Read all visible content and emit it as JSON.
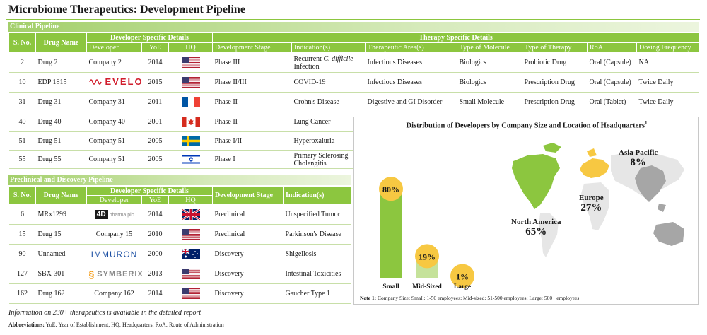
{
  "title": "Microbiome Therapeutics: Development Pipeline",
  "clinical": {
    "band": "Clinical Pipeline",
    "group_dev": "Developer Specific Details",
    "group_ther": "Therapy Specific Details",
    "headers": {
      "sno": "S. No.",
      "drug": "Drug Name",
      "developer": "Developer",
      "yoe": "YoE",
      "hq": "HQ",
      "stage": "Development Stage",
      "indication": "Indication(s)",
      "area": "Therapeutic Area(s)",
      "molecule": "Type of Molecule",
      "therapy": "Type of Therapy",
      "roa": "RoA",
      "dosing": "Dosing Frequency"
    },
    "rows": [
      {
        "sno": "2",
        "drug": "Drug 2",
        "developer": "Company 2",
        "logo": "",
        "yoe": "2014",
        "flag": "us-flag",
        "stage": "Phase III",
        "ind_a": "Recurrent ",
        "ind_b": "C. difficile",
        "ind_c": " Infection",
        "area": "Infectious Diseases",
        "molecule": "Biologics",
        "therapy": "Probiotic Drug",
        "roa": "Oral (Capsule)",
        "dosing": "NA"
      },
      {
        "sno": "10",
        "drug": "EDP 1815",
        "developer": "",
        "logo": "EVELO",
        "yoe": "2015",
        "flag": "us-flag",
        "stage": "Phase II/III",
        "ind_a": "COVID-19",
        "ind_b": "",
        "ind_c": "",
        "area": "Infectious Diseases",
        "molecule": "Biologics",
        "therapy": "Prescription Drug",
        "roa": "Oral (Capsule)",
        "dosing": "Twice Daily"
      },
      {
        "sno": "31",
        "drug": "Drug 31",
        "developer": "Company 31",
        "logo": "",
        "yoe": "2011",
        "flag": "france-flag",
        "stage": "Phase II",
        "ind_a": "Crohn's Disease",
        "ind_b": "",
        "ind_c": "",
        "area": "Digestive and GI Disorder",
        "molecule": "Small Molecule",
        "therapy": "Prescription Drug",
        "roa": "Oral (Tablet)",
        "dosing": "Twice Daily"
      },
      {
        "sno": "40",
        "drug": "Drug 40",
        "developer": "Company 40",
        "logo": "",
        "yoe": "2001",
        "flag": "canada-flag",
        "stage": "Phase II",
        "ind_a": "Lung Cancer",
        "ind_b": "",
        "ind_c": ""
      },
      {
        "sno": "51",
        "drug": "Drug 51",
        "developer": "Company 51",
        "logo": "",
        "yoe": "2005",
        "flag": "sweden-flag",
        "stage": "Phase I/II",
        "ind_a": "Hyperoxaluria",
        "ind_b": "",
        "ind_c": ""
      },
      {
        "sno": "55",
        "drug": "Drug 55",
        "developer": "Company 51",
        "logo": "",
        "yoe": "2005",
        "flag": "israel-flag",
        "stage": "Phase I",
        "ind_a": "Primary Sclerosing Cholangitis",
        "ind_b": "",
        "ind_c": ""
      }
    ]
  },
  "preclinical": {
    "band": "Preclinical and Discovery Pipeline",
    "group_dev": "Developer Specific Details",
    "headers": {
      "sno": "S. No.",
      "drug": "Drug Name",
      "developer": "Developer",
      "yoe": "YoE",
      "hq": "HQ",
      "stage": "Development Stage",
      "indication": "Indication(s)"
    },
    "rows": [
      {
        "sno": "6",
        "drug": "MRx1299",
        "developer": "",
        "logo": "4D",
        "logo_sub": "pharma plc",
        "yoe": "2014",
        "flag": "uk-flag",
        "stage": "Preclinical",
        "indication": "Unspecified Tumor"
      },
      {
        "sno": "15",
        "drug": "Drug 15",
        "developer": "Company 15",
        "logo": "",
        "yoe": "2010",
        "flag": "us-flag",
        "stage": "Preclinical",
        "indication": "Parkinson's Disease"
      },
      {
        "sno": "90",
        "drug": "Unnamed",
        "developer": "",
        "logo": "IMMURON",
        "yoe": "2000",
        "flag": "australia-flag",
        "stage": "Discovery",
        "indication": "Shigellosis"
      },
      {
        "sno": "127",
        "drug": "SBX-301",
        "developer": "",
        "logo": "SYMBERIX",
        "yoe": "2013",
        "flag": "us-flag",
        "stage": "Discovery",
        "indication": "Intestinal Toxicities"
      },
      {
        "sno": "162",
        "drug": "Drug 162",
        "developer": "Company 162",
        "logo": "",
        "yoe": "2014",
        "flag": "us-flag",
        "stage": "Discovery",
        "indication": "Gaucher Type 1"
      }
    ]
  },
  "chart_data": {
    "type": "bar",
    "title": "Distribution of Developers by Company Size and Location of Headquarters",
    "title_sup": "1",
    "categories": [
      "Small",
      "Mid-Sized",
      "Large"
    ],
    "values": [
      80,
      19,
      1
    ],
    "value_labels": [
      "80%",
      "19%",
      "1%"
    ],
    "unit": "%",
    "ylim": [
      0,
      100
    ],
    "colors": [
      "#8cc63f",
      "#c5e29a",
      "#d9d9d9"
    ],
    "label_color": "#f7c842",
    "regions": [
      {
        "name": "North America",
        "share": 65,
        "label": "65%",
        "color": "#8cc63f"
      },
      {
        "name": "Europe",
        "share": 27,
        "label": "27%",
        "color": "#f7c842"
      },
      {
        "name": "Asia Pacific",
        "share": 8,
        "label": "8%",
        "color": "#a6a6a6"
      }
    ],
    "note_label": "Note 1:",
    "note_text": " Company Size: Small: 1-50 employees; Mid-sized: 51-500 employees; Large: 500+ employees"
  },
  "footer": {
    "info": "Information on 230+ therapeutics is available in the detailed report",
    "abbr_label": "Abbreviations:",
    "abbr_text": " YoE: Year of Establishment, HQ: Headquarters, RoA: Route of Administration"
  },
  "colors": {
    "accent": "#8cc63f",
    "rule": "#c8dfa8"
  }
}
